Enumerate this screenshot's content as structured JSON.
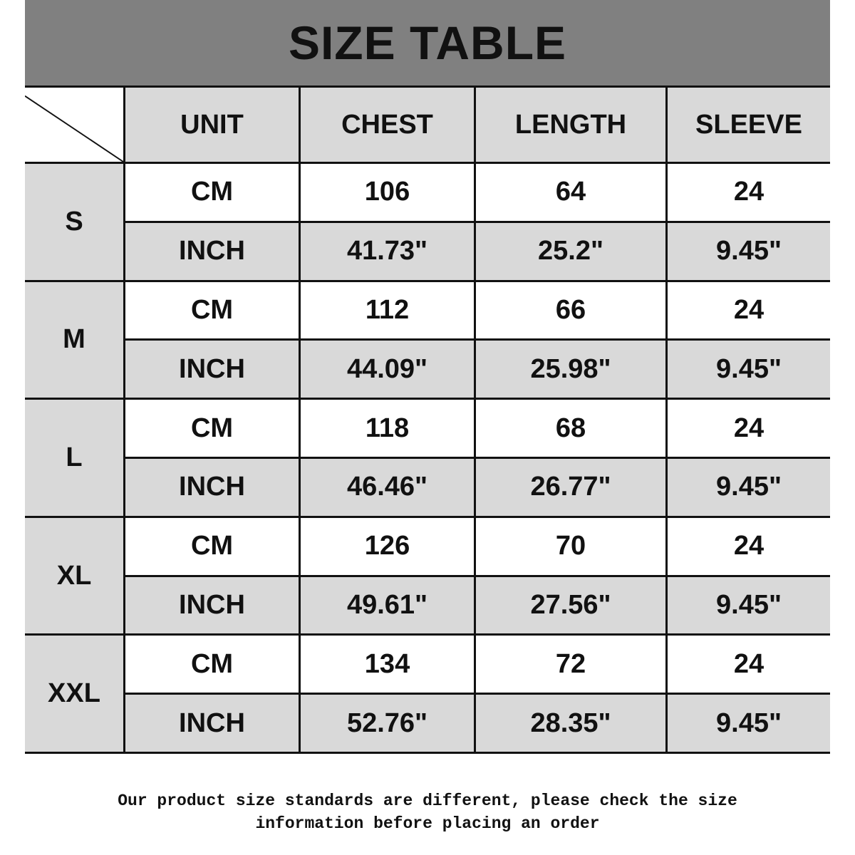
{
  "title": "SIZE TABLE",
  "headers": [
    "UNIT",
    "CHEST",
    "LENGTH",
    "SLEEVE"
  ],
  "rows": [
    {
      "size": "S",
      "cm": [
        "CM",
        "106",
        "64",
        "24"
      ],
      "inch": [
        "INCH",
        "41.73\"",
        "25.2\"",
        "9.45\""
      ]
    },
    {
      "size": "M",
      "cm": [
        "CM",
        "112",
        "66",
        "24"
      ],
      "inch": [
        "INCH",
        "44.09\"",
        "25.98\"",
        "9.45\""
      ]
    },
    {
      "size": "L",
      "cm": [
        "CM",
        "118",
        "68",
        "24"
      ],
      "inch": [
        "INCH",
        "46.46\"",
        "26.77\"",
        "9.45\""
      ]
    },
    {
      "size": "XL",
      "cm": [
        "CM",
        "126",
        "70",
        "24"
      ],
      "inch": [
        "INCH",
        "49.61\"",
        "27.56\"",
        "9.45\""
      ]
    },
    {
      "size": "XXL",
      "cm": [
        "CM",
        "134",
        "72",
        "24"
      ],
      "inch": [
        "INCH",
        "52.76\"",
        "28.35\"",
        "9.45\""
      ]
    }
  ],
  "footer": {
    "line1": "Our product size standards are different, please check the size",
    "line2": "information before placing an order"
  },
  "colors": {
    "title_bg": "#808080",
    "cell_gray": "#d9d9d9",
    "border": "#111111"
  }
}
